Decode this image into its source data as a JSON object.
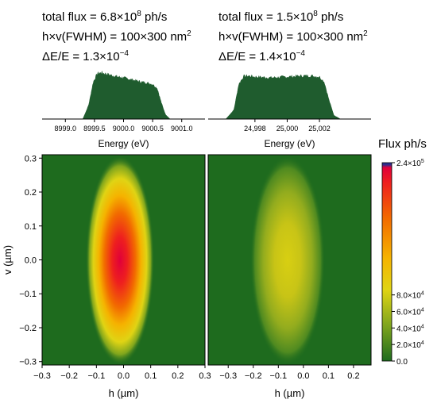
{
  "colors": {
    "spectrum_fill": "#1f5c2e",
    "map_background": "#1e6b1e",
    "colormap": [
      "#1e6b1e",
      "#7fa51d",
      "#e0d414",
      "#f5b300",
      "#f26a00",
      "#ee1f1f",
      "#e0003a",
      "#2b2e8f"
    ]
  },
  "panel_left": {
    "flux_label": "total flux = 6.8×10",
    "flux_exp": "8",
    "flux_unit": " ph/s",
    "size_label": "h×v(FWHM) = 100×300 nm",
    "size_exp": "2",
    "de_label": "ΔE/E = 1.3×10",
    "de_exp": "−4"
  },
  "panel_right": {
    "flux_label": "total flux = 1.5×10",
    "flux_exp": "8",
    "flux_unit": " ph/s",
    "size_label": "h×v(FWHM) = 100×300 nm",
    "size_exp": "2",
    "de_label": "ΔE/E = 1.4×10",
    "de_exp": "−4"
  },
  "colorbar": {
    "title": "Flux ph/s"
  },
  "chart_data": [
    {
      "type": "area",
      "id": "spectrum-left",
      "xlabel": "Energy (eV)",
      "xlim": [
        8998.6,
        9001.4
      ],
      "xticks": [
        8999.0,
        8999.5,
        9000.0,
        9000.5,
        9001.0
      ],
      "xtick_labels": [
        "8999.0",
        "8999.5",
        "9000.0",
        "9000.5",
        "9001.0"
      ],
      "x": [
        8999.3,
        8999.4,
        8999.48,
        8999.55,
        8999.62,
        8999.7,
        8999.8,
        8999.9,
        9000.0,
        9000.1,
        9000.2,
        9000.3,
        9000.4,
        9000.5,
        9000.58,
        9000.65,
        9000.72,
        9000.8
      ],
      "values": [
        0.0,
        0.3,
        0.8,
        0.98,
        1.0,
        0.97,
        0.94,
        0.91,
        0.89,
        0.86,
        0.83,
        0.8,
        0.78,
        0.75,
        0.66,
        0.35,
        0.1,
        0.0
      ]
    },
    {
      "type": "area",
      "id": "spectrum-right",
      "xlabel": "Energy (eV)",
      "xlim": [
        24995.1,
        25005.2
      ],
      "xticks": [
        24998,
        25000,
        25002
      ],
      "xtick_labels": [
        "24,998",
        "25,000",
        "25,002"
      ],
      "x": [
        24996.2,
        24996.7,
        24997.0,
        24997.3,
        24997.6,
        24998.0,
        24998.5,
        24999.0,
        24999.5,
        25000.0,
        25000.5,
        25001.0,
        25001.5,
        25002.0,
        25002.3,
        25002.6,
        25002.9,
        25003.3
      ],
      "values": [
        0.0,
        0.2,
        0.75,
        0.92,
        0.93,
        0.91,
        0.9,
        0.89,
        0.9,
        0.91,
        0.92,
        0.93,
        0.93,
        0.91,
        0.8,
        0.4,
        0.08,
        0.0
      ]
    },
    {
      "type": "heatmap",
      "id": "map-left",
      "xlabel": "h (µm)",
      "ylabel": "v (µm)",
      "xlim": [
        -0.3,
        0.3
      ],
      "ylim": [
        -0.31,
        0.31
      ],
      "xticks": [
        -0.3,
        -0.2,
        -0.1,
        0.0,
        0.1,
        0.2,
        0.3
      ],
      "xtick_labels": [
        "−0.3",
        "−0.2",
        "−0.1",
        "0.0",
        "0.1",
        "0.2",
        "0.3"
      ],
      "yticks": [
        -0.3,
        -0.2,
        -0.1,
        0.0,
        0.1,
        0.2,
        0.3
      ],
      "ytick_labels": [
        "−0.3",
        "−0.2",
        "−0.1",
        "0.0",
        "0.1",
        "0.2",
        "0.3"
      ],
      "spot_center": [
        -0.01,
        0.0
      ],
      "spot_fwhm_h": 0.1,
      "spot_fwhm_v": 0.3,
      "peak_flux": 240000
    },
    {
      "type": "heatmap",
      "id": "map-right",
      "xlabel": "h (µm)",
      "xlim": [
        -0.38,
        0.27
      ],
      "ylim": [
        -0.31,
        0.31
      ],
      "xticks": [
        -0.3,
        -0.2,
        -0.1,
        0.0,
        0.1,
        0.2
      ],
      "xtick_labels": [
        "−0.3",
        "−0.2",
        "−0.1",
        "0.0",
        "0.1",
        "0.2"
      ],
      "spot_center": [
        -0.04,
        0.0
      ],
      "spot_fwhm_h": 0.1,
      "spot_fwhm_v": 0.3,
      "peak_flux": 60000
    },
    {
      "type": "heatmap",
      "id": "colorbar",
      "zlim": [
        0,
        240000
      ],
      "zticks": [
        0,
        20000,
        40000,
        60000,
        80000,
        240000
      ],
      "ztick_mantissa": [
        "0.0",
        "2.0×10",
        "4.0×10",
        "6.0×10",
        "8.0×10",
        "2.4×10"
      ],
      "ztick_exp": [
        "",
        "4",
        "4",
        "4",
        "4",
        "5"
      ]
    }
  ]
}
